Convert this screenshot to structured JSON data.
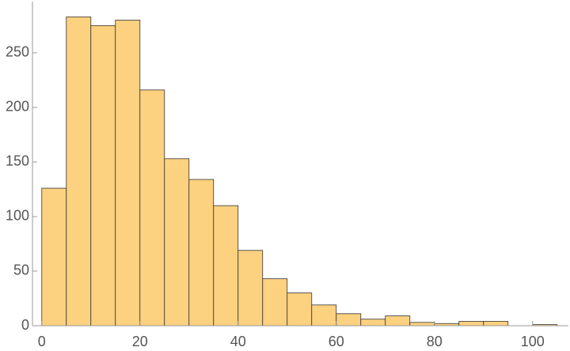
{
  "chart_data": {
    "type": "histogram",
    "bins": [
      0,
      5,
      10,
      15,
      20,
      25,
      30,
      35,
      40,
      45,
      50,
      55,
      60,
      65,
      70,
      75,
      80,
      85,
      90,
      95,
      100,
      105
    ],
    "values": [
      126,
      283,
      275,
      280,
      216,
      153,
      134,
      110,
      69,
      43,
      30,
      19,
      11,
      6,
      9,
      3,
      2,
      4,
      4,
      0,
      1
    ],
    "color": "#fcd17f",
    "edge_color": "#333333",
    "xlim": [
      -1.9,
      107.3
    ],
    "xticks": [
      0,
      20,
      40,
      60,
      80,
      100
    ],
    "ylim": [
      0,
      297
    ],
    "yticks": [
      0,
      50,
      100,
      150,
      200,
      250
    ]
  }
}
